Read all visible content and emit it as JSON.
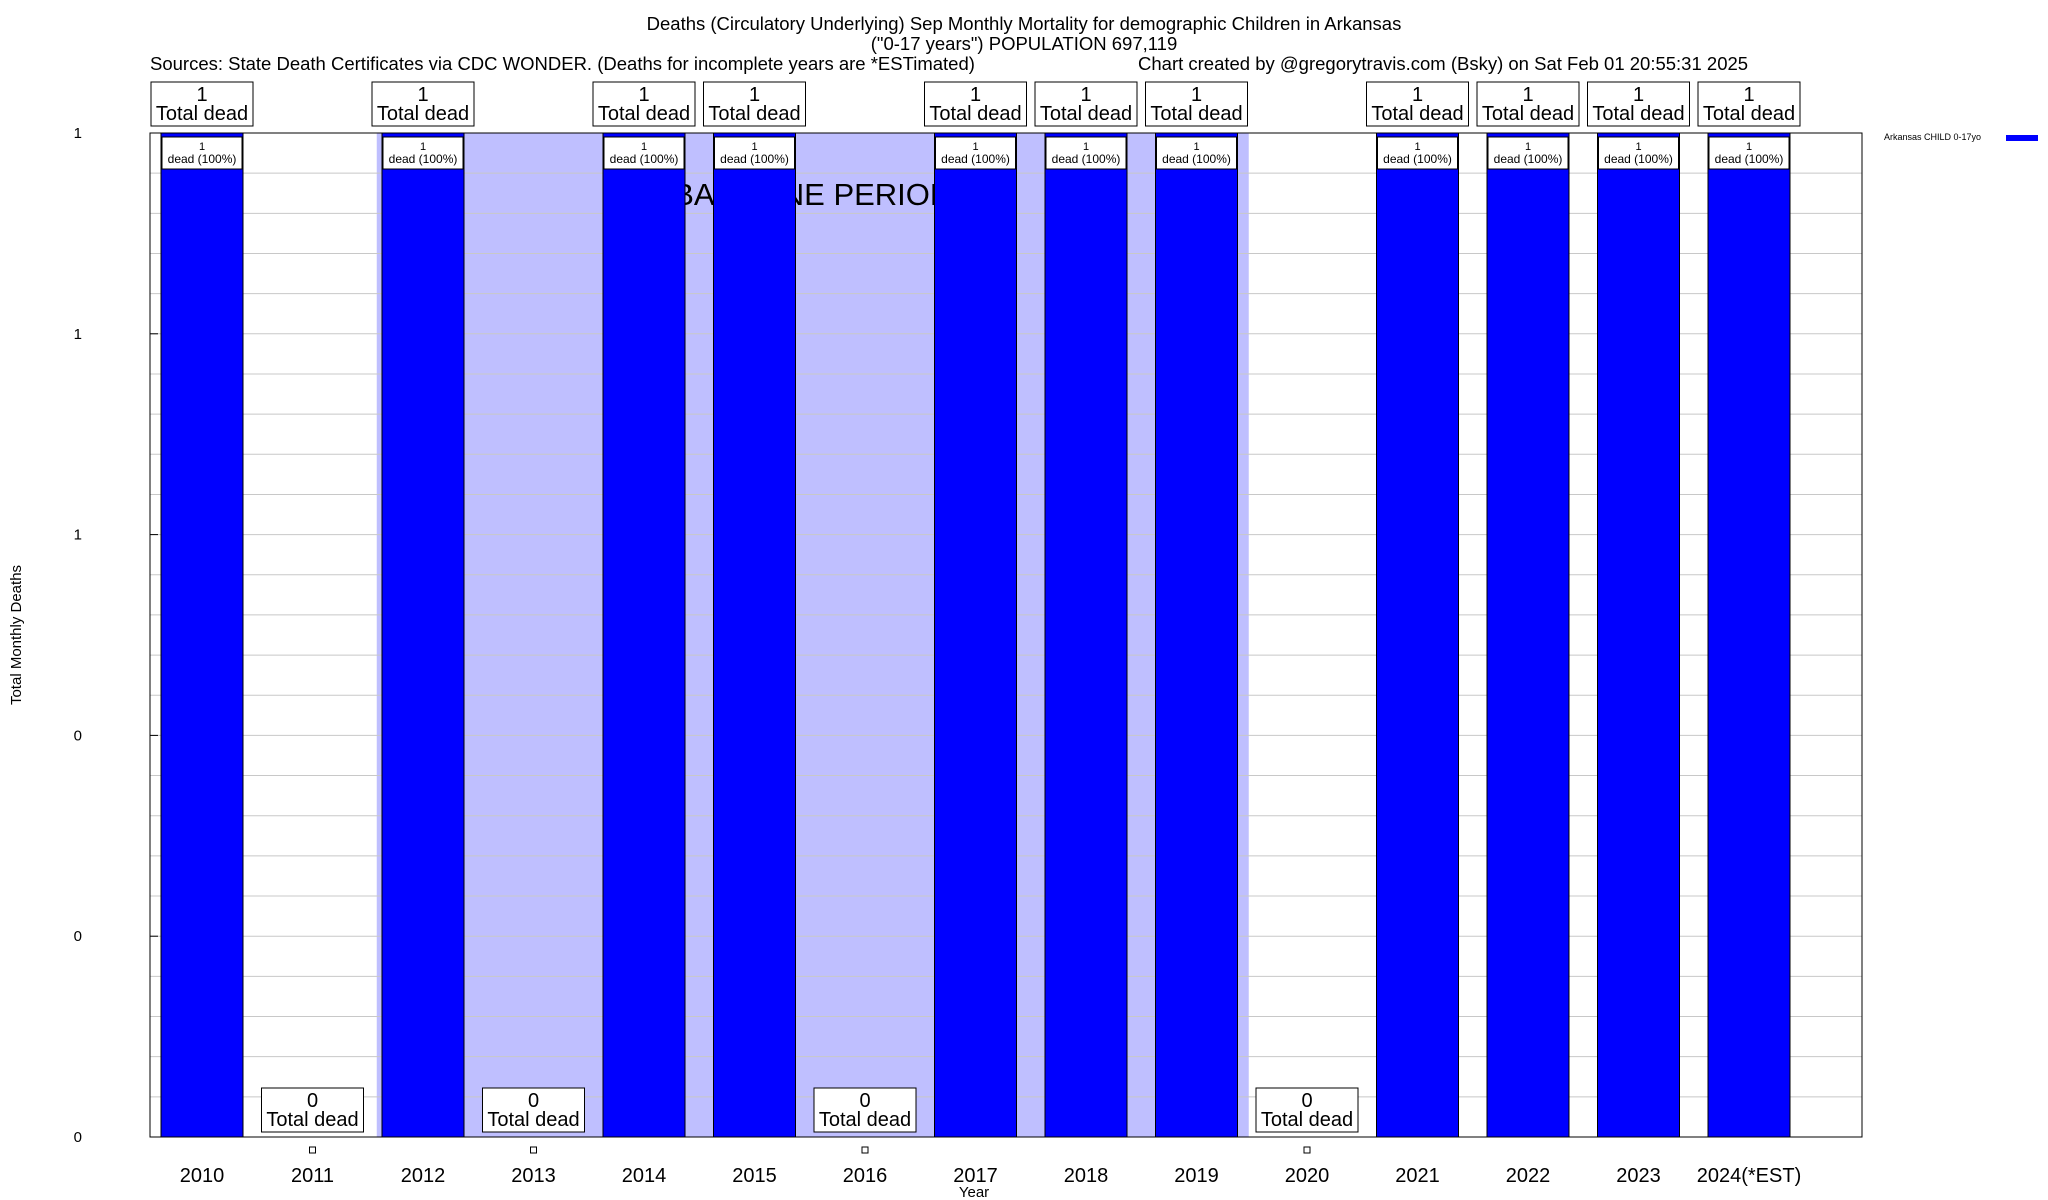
{
  "chart_data": {
    "type": "bar",
    "title": "Deaths (Circulatory Underlying) Sep Monthly Mortality for demographic Children in Arkansas",
    "subtitle": "(\"0-17 years\") POPULATION 697,119",
    "source_note": "Sources: State Death Certificates via CDC WONDER. (Deaths for incomplete years are *ESTimated)",
    "credit": "Chart created by @gregorytravis.com (Bsky) on Sat Feb 01 20:55:31 2025",
    "xlabel": "Year",
    "ylabel": "Total Monthly Deaths",
    "categories": [
      "2010",
      "2011",
      "2012",
      "2013",
      "2014",
      "2015",
      "2016",
      "2017",
      "2018",
      "2019",
      "2020",
      "2021",
      "2022",
      "2023",
      "2024(*EST)"
    ],
    "series": [
      {
        "name": "Arkansas CHILD 0-17yo",
        "values": [
          1,
          0,
          1,
          0,
          1,
          1,
          0,
          1,
          1,
          1,
          0,
          1,
          1,
          1,
          1
        ]
      }
    ],
    "top_labels": [
      "1\nTotal dead",
      "0\nTotal dead",
      "1\nTotal dead",
      "0\nTotal dead",
      "1\nTotal dead",
      "1\nTotal dead",
      "0\nTotal dead",
      "1\nTotal dead",
      "1\nTotal dead",
      "1\nTotal dead",
      "0\nTotal dead",
      "1\nTotal dead",
      "1\nTotal dead",
      "1\nTotal dead",
      "1\nTotal dead"
    ],
    "inner_labels": [
      "1\ndead (100%)",
      "",
      "1\ndead (100%)",
      "",
      "1\ndead (100%)",
      "1\ndead (100%)",
      "",
      "1\ndead (100%)",
      "1\ndead (100%)",
      "1\ndead (100%)",
      "",
      "1\ndead (100%)",
      "1\ndead (100%)",
      "1\ndead (100%)",
      "1\ndead (100%)"
    ],
    "ytick_labels": [
      "0",
      "0",
      "0",
      "1",
      "1",
      "1"
    ],
    "ytick_values": [
      0,
      0.2,
      0.4,
      0.6,
      0.8,
      1.0
    ],
    "ylim": [
      0,
      1
    ],
    "baseline_text": "BASELINE PERIOD",
    "baseline_shaded_years": [
      "2012",
      "2013",
      "2014",
      "2015",
      "2016",
      "2017",
      "2018",
      "2019"
    ],
    "grid": true,
    "legend_position": "top-right",
    "colors": {
      "bar": "#0000ff",
      "baseline_shade": "#bfbfff",
      "grid": "#c8c8c8"
    }
  }
}
